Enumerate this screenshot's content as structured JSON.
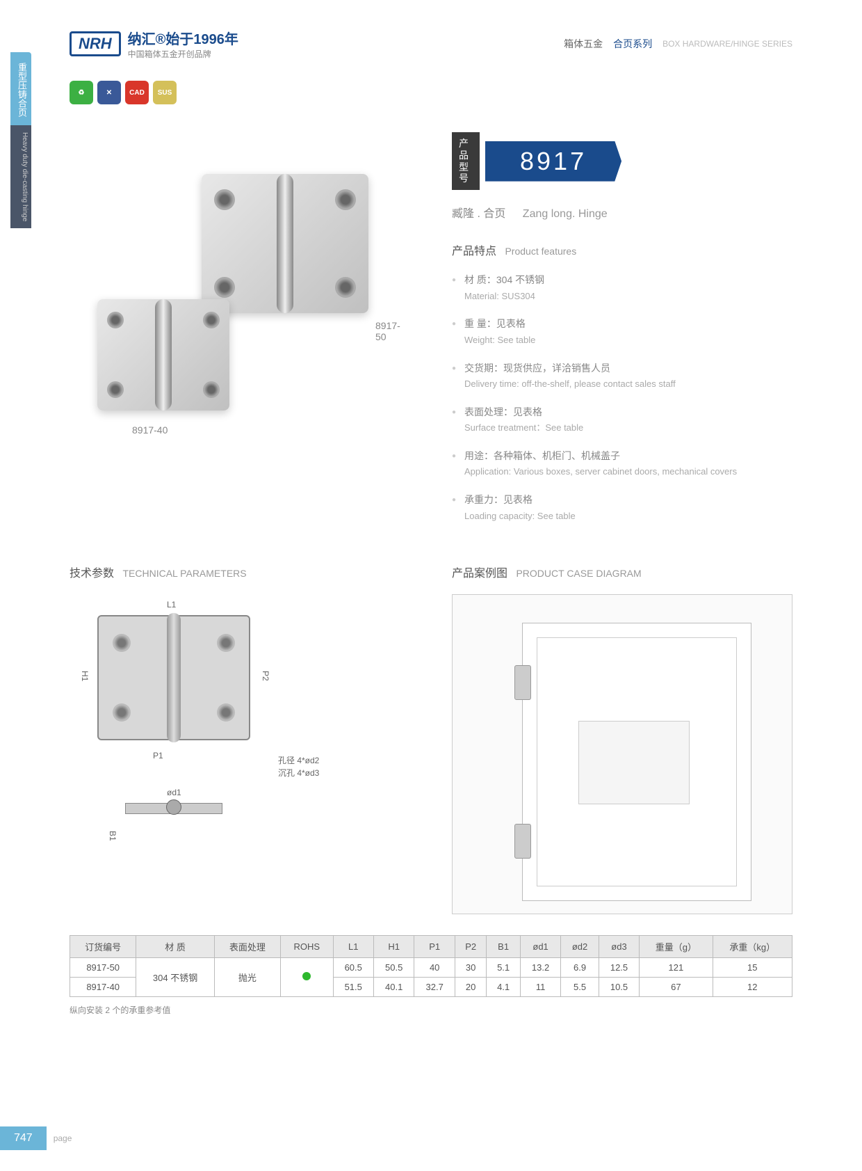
{
  "header": {
    "logo": "NRH",
    "logo_cn": "纳汇®始于1996年",
    "logo_sub": "中国箱体五金开创品牌",
    "right_cn": "箱体五金",
    "right_accent": "合页系列",
    "right_en": "BOX HARDWARE/HINGE SERIES"
  },
  "side_tab_cn": "重型压铸合页",
  "side_tab_en": "Heavy duty die-casting hinge",
  "badges": [
    {
      "bg": "#3cb043",
      "text": "♻"
    },
    {
      "bg": "#3a5998",
      "text": "✕"
    },
    {
      "bg": "#d9362a",
      "text": "CAD"
    },
    {
      "bg": "#d4c05a",
      "text": "SUS"
    }
  ],
  "product": {
    "model_label": "产品型号",
    "model_number": "8917",
    "subtitle_cn": "臧隆 . 合页",
    "subtitle_en": "Zang long. Hinge",
    "img_labels": {
      "large": "8917-50",
      "small": "8917-40"
    },
    "features_title_cn": "产品特点",
    "features_title_en": "Product features",
    "features": [
      {
        "cn": "材  质：304 不锈钢",
        "en": "Material: SUS304"
      },
      {
        "cn": "重  量：见表格",
        "en": "Weight: See table"
      },
      {
        "cn": "交货期：现货供应，详洽销售人员",
        "en": "Delivery time: off-the-shelf, please contact sales staff"
      },
      {
        "cn": "表面处理：见表格",
        "en": "Surface treatment：See table"
      },
      {
        "cn": "用途：各种箱体、机柜门、机械盖子",
        "en": "Application: Various boxes, server cabinet doors, mechanical covers"
      },
      {
        "cn": "承重力：见表格",
        "en": "Loading capacity: See table"
      }
    ]
  },
  "tech": {
    "title_cn": "技术参数",
    "title_en": "TECHNICAL PARAMETERS",
    "dims": {
      "L1": "L1",
      "H1": "H1",
      "P1": "P1",
      "P2": "P2",
      "B1": "B1",
      "od1": "ød1"
    },
    "hole_note1": "孔径 4*ød2",
    "hole_note2": "沉孔 4*ød3"
  },
  "case": {
    "title_cn": "产品案例图",
    "title_en": "PRODUCT CASE DIAGRAM"
  },
  "table": {
    "headers": [
      "订货编号",
      "材    质",
      "表面处理",
      "ROHS",
      "L1",
      "H1",
      "P1",
      "P2",
      "B1",
      "ød1",
      "ød2",
      "ød3",
      "重量（g）",
      "承重（kg）"
    ],
    "material": "304 不锈钢",
    "surface": "抛光",
    "rohs_color": "#2eb82e",
    "rows": [
      {
        "id": "8917-50",
        "vals": [
          "60.5",
          "50.5",
          "40",
          "30",
          "5.1",
          "13.2",
          "6.9",
          "12.5",
          "121",
          "15"
        ]
      },
      {
        "id": "8917-40",
        "vals": [
          "51.5",
          "40.1",
          "32.7",
          "20",
          "4.1",
          "11",
          "5.5",
          "10.5",
          "67",
          "12"
        ]
      }
    ],
    "note": "纵向安装 2 个的承重参考值"
  },
  "footer": {
    "page": "747",
    "label": "page"
  },
  "colors": {
    "primary": "#1a4b8c",
    "accent": "#6bb5d8",
    "text_muted": "#888888",
    "border": "#bbbbbb"
  }
}
